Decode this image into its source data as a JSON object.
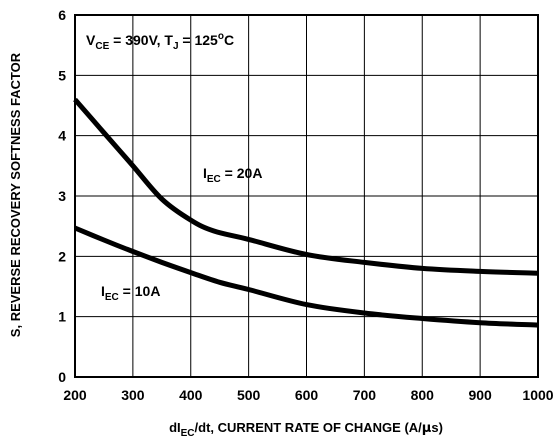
{
  "chart_data": {
    "type": "line",
    "title": "",
    "xlabel": {
      "main_a": "dI",
      "sub": "EC",
      "main_b": "/dt, CURRENT RATE OF CHANGE (A/",
      "mu": "μ",
      "main_c": "s)"
    },
    "ylabel": "S, REVERSE RECOVERY SOFTNESS FACTOR",
    "xlim": [
      200,
      1000
    ],
    "ylim": [
      0,
      6
    ],
    "xticks": [
      200,
      300,
      400,
      500,
      600,
      700,
      800,
      900,
      1000
    ],
    "yticks": [
      0,
      1,
      2,
      3,
      4,
      5,
      6
    ],
    "grid": true,
    "conditions": {
      "v_main": "V",
      "v_sub": "CE",
      "v_value": " = 390V, T",
      "t_sub": "J",
      "t_value": " = 125",
      "deg": "o",
      "unit": "C"
    },
    "series": [
      {
        "name": "I_EC = 20A",
        "label_main": "I",
        "label_sub": "EC",
        "label_value": " = 20A",
        "x": [
          200,
          250,
          300,
          350,
          400,
          440,
          500,
          600,
          700,
          800,
          900,
          1000
        ],
        "y": [
          4.6,
          4.05,
          3.5,
          2.95,
          2.6,
          2.42,
          2.28,
          2.03,
          1.9,
          1.8,
          1.75,
          1.72
        ]
      },
      {
        "name": "I_EC = 10A",
        "label_main": "I",
        "label_sub": "EC",
        "label_value": " = 10A",
        "x": [
          200,
          250,
          300,
          350,
          400,
          450,
          500,
          600,
          700,
          800,
          900,
          1000
        ],
        "y": [
          2.47,
          2.27,
          2.08,
          1.9,
          1.73,
          1.57,
          1.45,
          1.2,
          1.06,
          0.97,
          0.9,
          0.86
        ]
      }
    ]
  }
}
